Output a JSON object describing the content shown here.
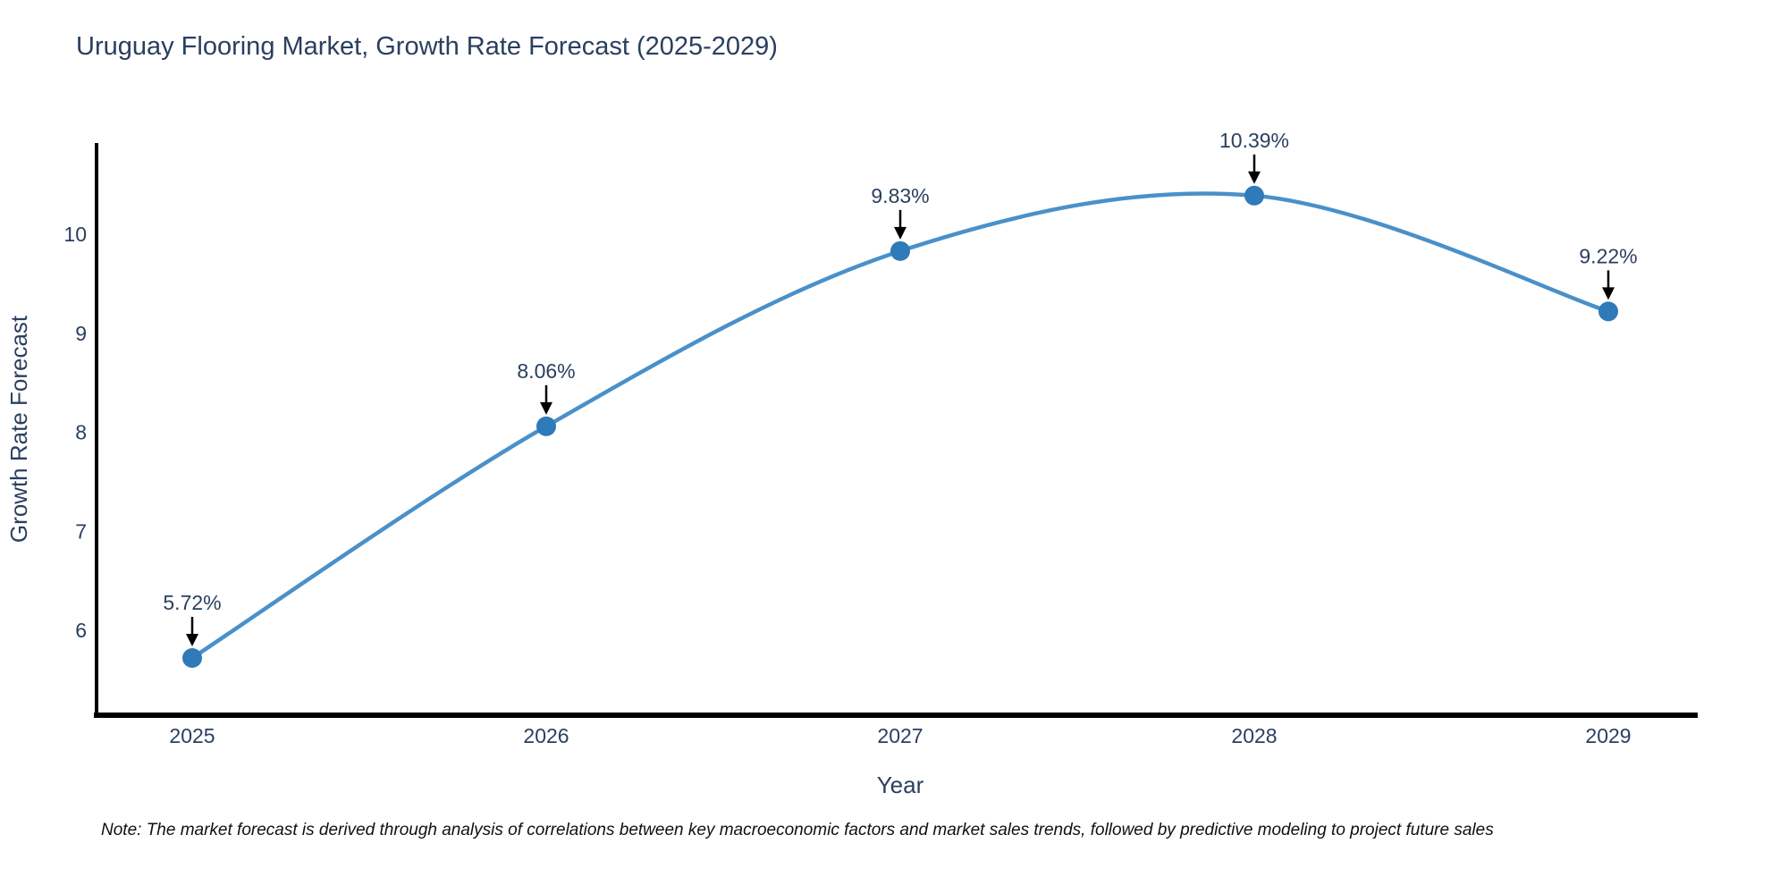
{
  "note": {
    "text": "Note: The market forecast is derived through analysis of correlations between key macroeconomic factors and market sales trends, followed by predictive modeling to project future sales"
  },
  "chart_data": {
    "type": "line",
    "title": "Uruguay Flooring Market, Growth Rate Forecast (2025-2029)",
    "xlabel": "Year",
    "ylabel": "Growth Rate Forecast",
    "x": [
      2025,
      2026,
      2027,
      2028,
      2029
    ],
    "x_tick_labels": [
      "2025",
      "2026",
      "2027",
      "2028",
      "2029"
    ],
    "series": [
      {
        "name": "Growth Rate Forecast",
        "values": [
          5.72,
          8.06,
          9.83,
          10.39,
          9.22
        ]
      }
    ],
    "point_labels": [
      "5.72%",
      "8.06%",
      "9.83%",
      "10.39%",
      "9.22%"
    ],
    "y_ticks": [
      6,
      7,
      8,
      9,
      10
    ],
    "ylim": [
      5.14,
      10.92
    ],
    "xlim": [
      2024.72,
      2029.25
    ],
    "line_shape": "spline",
    "grid": false,
    "legend_position": "none",
    "annotation_style": "down-arrow-to-point",
    "colors": {
      "line": "#4a90c9",
      "marker": "#2f7ab8",
      "axis_line": "#000000",
      "text": "#2a3f5f",
      "annotation_text": "#2a3f5f",
      "annotation_arrow": "#000000",
      "note_text": "#111111",
      "background": "#ffffff"
    }
  }
}
